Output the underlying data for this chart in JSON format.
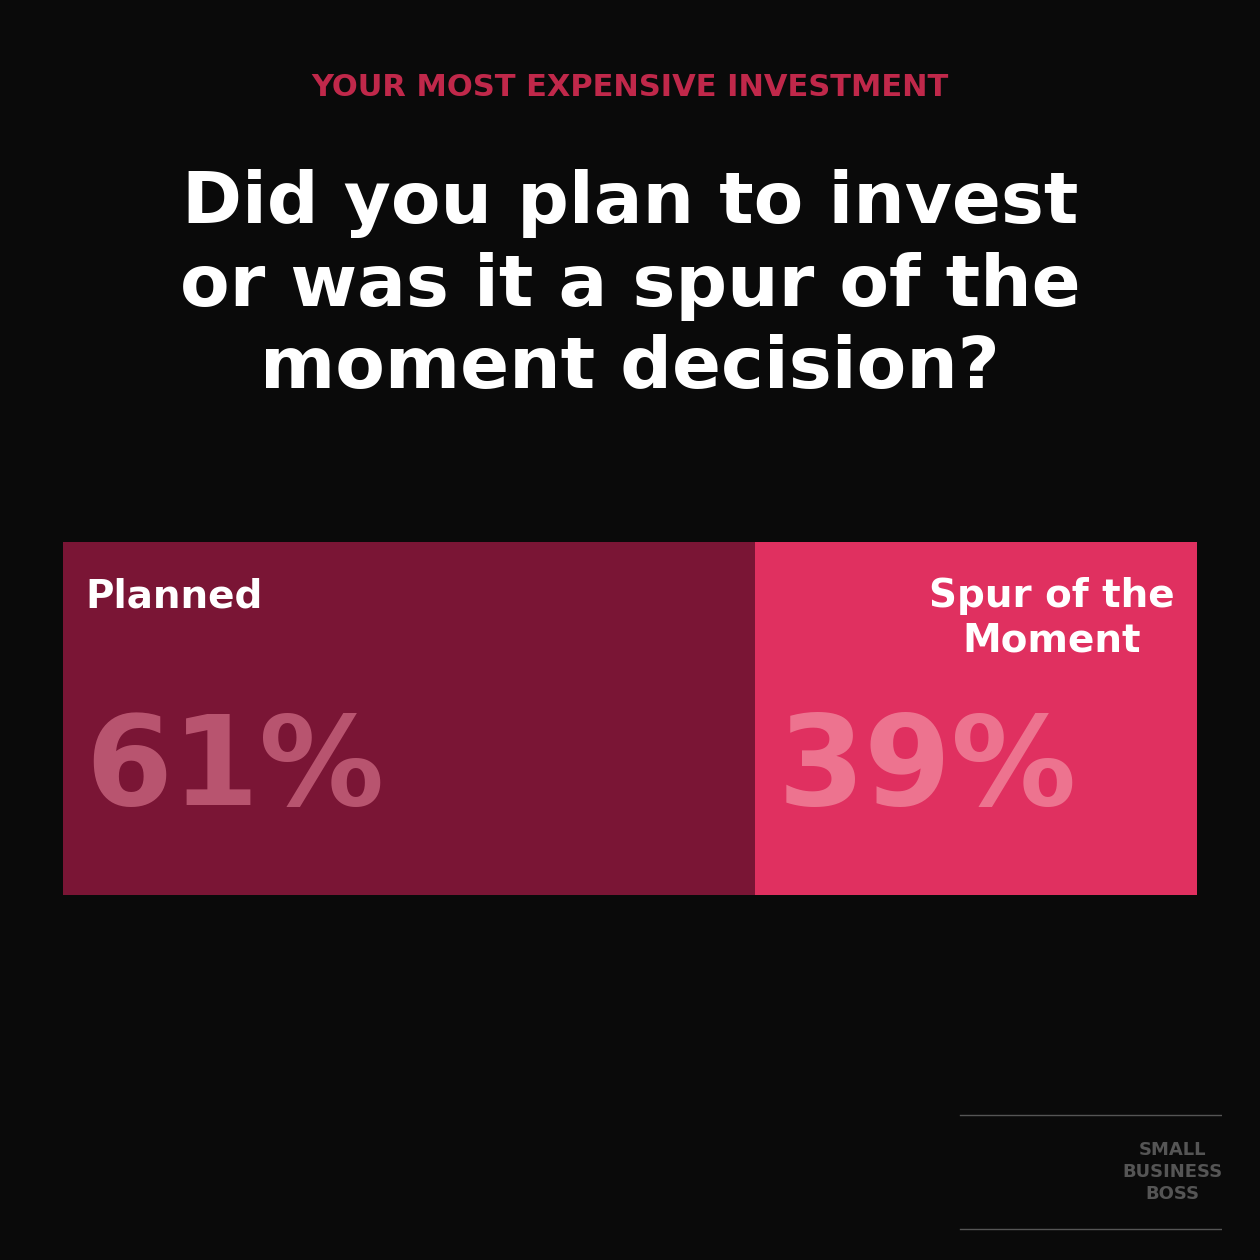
{
  "background_color": "#0a0a0a",
  "subtitle": "YOUR MOST EXPENSIVE INVESTMENT",
  "subtitle_color": "#c0284a",
  "title": "Did you plan to invest\nor was it a spur of the\nmoment decision?",
  "title_color": "#ffffff",
  "subtitle_fontsize": 22,
  "title_fontsize": 52,
  "bar_labels": [
    "Planned",
    "Spur of the\nMoment"
  ],
  "bar_values": [
    61,
    39
  ],
  "bar_colors": [
    "#7a1535",
    "#e03060"
  ],
  "pct_labels": [
    "61%",
    "39%"
  ],
  "pct_color_planned": "#c4607a",
  "pct_color_spur": "#f08098",
  "label_color": "#ffffff",
  "bar_label_fontsize": 28,
  "pct_fontsize": 90,
  "logo_text": "SMALL\nBUSINESS\nBOSS",
  "logo_color": "#555555"
}
